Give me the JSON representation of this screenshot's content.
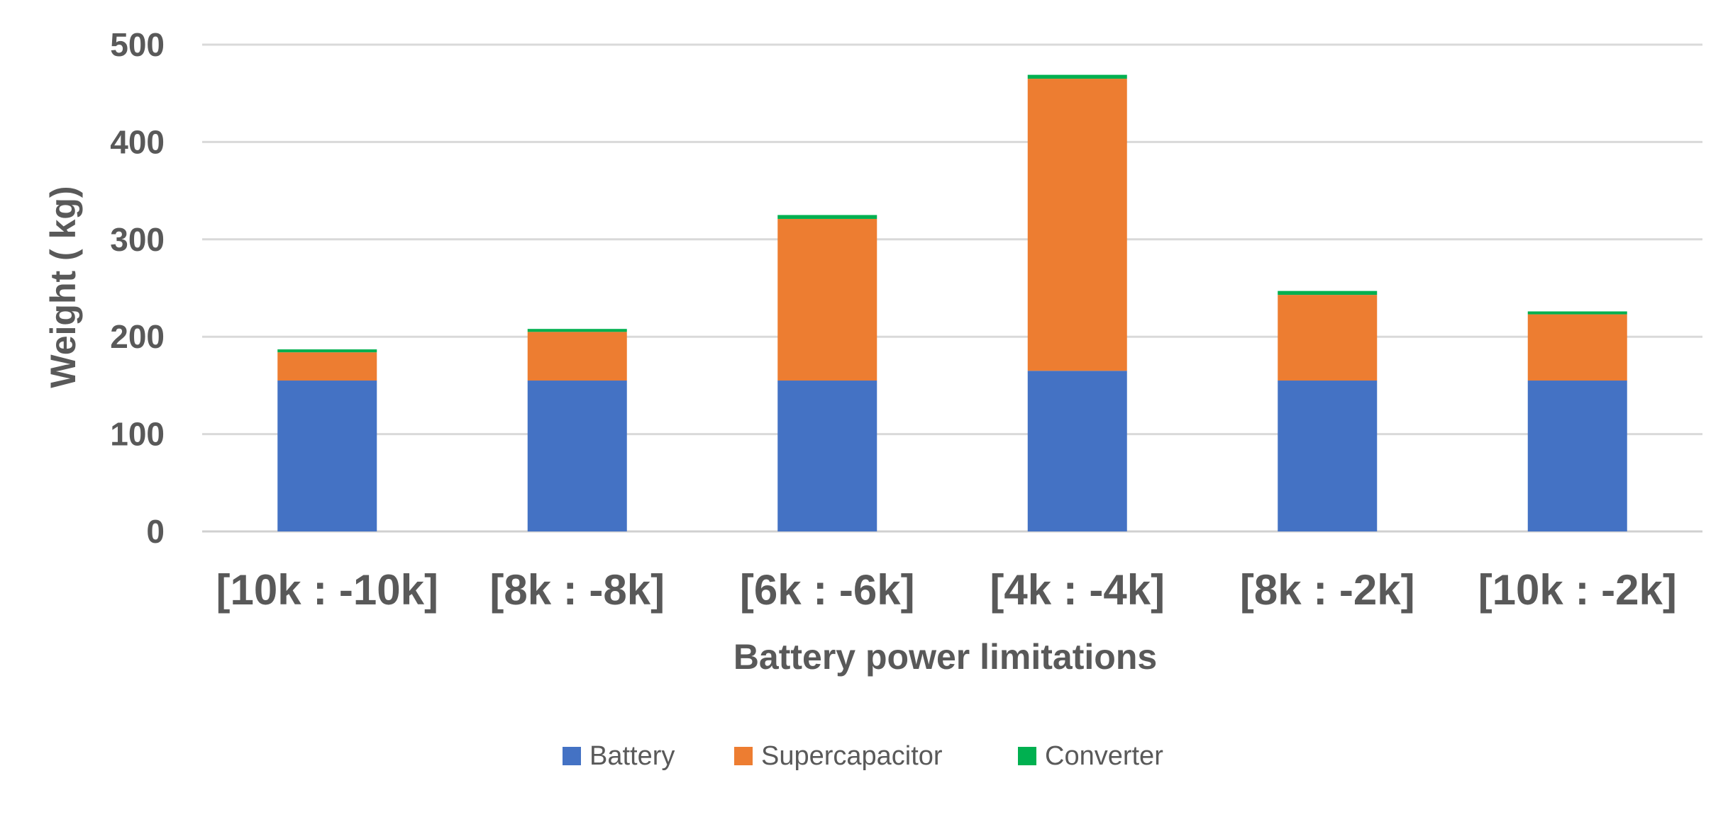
{
  "chart_data": {
    "type": "bar",
    "stacked": true,
    "title": "",
    "xlabel": "Battery power limitations",
    "ylabel": "Weight ( kg)",
    "ylim": [
      0,
      500
    ],
    "yticks": [
      "0",
      "100",
      "200",
      "300",
      "400",
      "500"
    ],
    "grid": true,
    "legend_position": "bottom",
    "categories": [
      "[10k : -10k]",
      "[8k : -8k]",
      "[6k : -6k]",
      "[4k : -4k]",
      "[8k : -2k]",
      "[10k : -2k]"
    ],
    "series": [
      {
        "name": "Battery",
        "color": "#4472C4",
        "values": [
          155,
          155,
          155,
          165,
          155,
          155
        ]
      },
      {
        "name": "Supercapacitor",
        "color": "#ED7D31",
        "values": [
          29,
          50,
          166,
          300,
          88,
          68
        ]
      },
      {
        "name": "Converter",
        "color": "#00B050",
        "values": [
          3,
          3,
          4,
          4,
          4,
          3
        ]
      }
    ]
  }
}
